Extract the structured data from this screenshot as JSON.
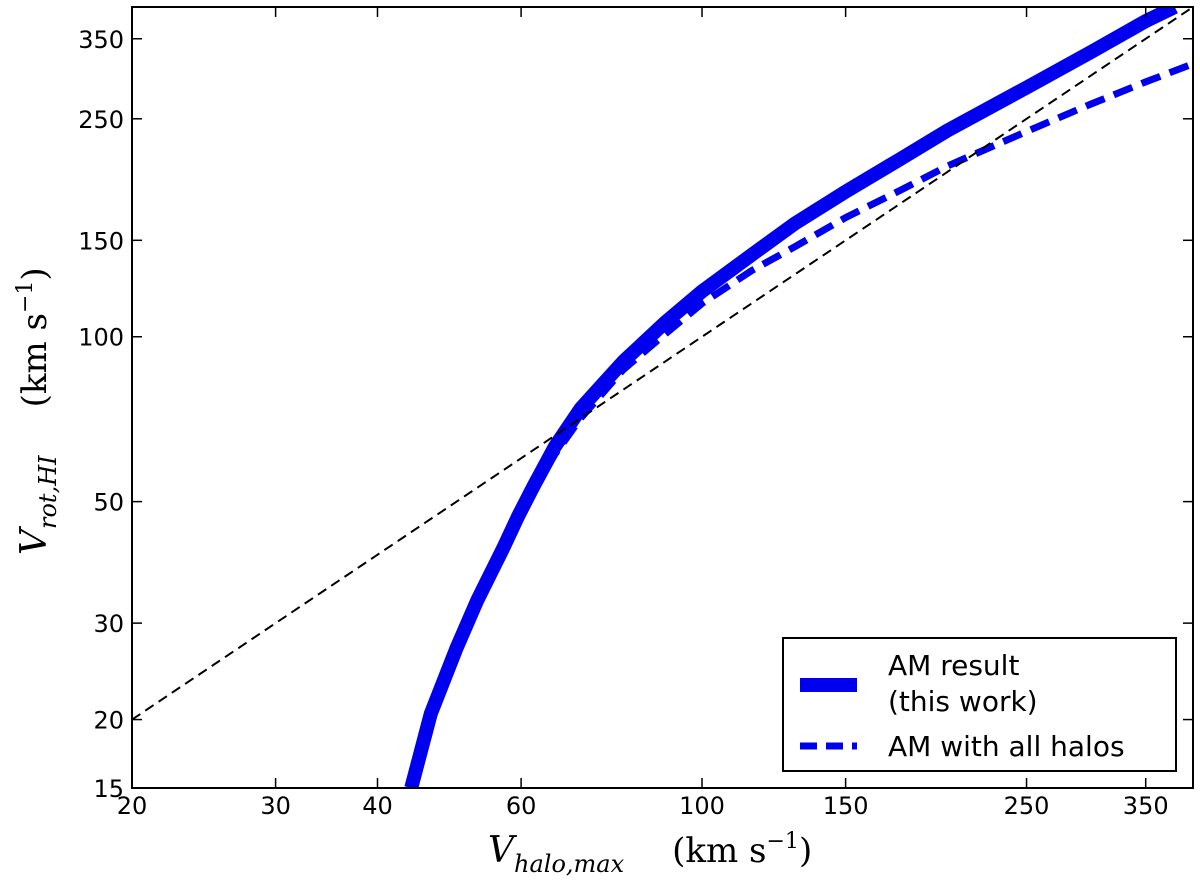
{
  "chart_data": {
    "type": "line",
    "x_scale": "log",
    "y_scale": "log",
    "xlim": [
      20,
      400
    ],
    "ylim": [
      15,
      400
    ],
    "x_ticks": [
      20,
      30,
      40,
      60,
      100,
      150,
      250,
      350
    ],
    "y_ticks": [
      15,
      20,
      30,
      50,
      100,
      150,
      250,
      350
    ],
    "x_tick_labels": [
      "20",
      "30",
      "40",
      "60",
      "100",
      "150",
      "250",
      "350"
    ],
    "y_tick_labels": [
      "15",
      "20",
      "30",
      "50",
      "100",
      "150",
      "250",
      "350"
    ],
    "xlabel": {
      "symbol": "V",
      "subscript": "halo,max",
      "unit_open": "(km s",
      "unit_sup": "−1",
      "unit_close": ")"
    },
    "ylabel": {
      "symbol": "V",
      "subscript": "rot,HI",
      "unit_open": "(km s",
      "unit_sup": "−1",
      "unit_close": ")"
    },
    "legend_position": "bottom-right",
    "series": [
      {
        "name": "AM result\n(this work)",
        "style": "solid-thick",
        "color": "#0000ee",
        "points": [
          [
            44,
            15
          ],
          [
            46.5,
            20.5
          ],
          [
            50,
            27
          ],
          [
            53,
            33
          ],
          [
            57,
            41
          ],
          [
            59.5,
            47
          ],
          [
            62,
            53
          ],
          [
            66,
            63
          ],
          [
            71,
            74
          ],
          [
            80,
            90
          ],
          [
            90,
            106
          ],
          [
            100,
            121
          ],
          [
            115,
            141
          ],
          [
            130,
            161
          ],
          [
            150,
            184
          ],
          [
            175,
            211
          ],
          [
            200,
            238
          ],
          [
            250,
            285
          ],
          [
            300,
            331
          ],
          [
            350,
            377
          ],
          [
            380,
            400
          ]
        ]
      },
      {
        "name": "AM with all halos",
        "style": "dashed-thick",
        "color": "#0000ee",
        "points": [
          [
            53,
            33
          ],
          [
            57,
            40
          ],
          [
            59.5,
            46
          ],
          [
            62,
            52
          ],
          [
            66,
            61
          ],
          [
            71,
            71
          ],
          [
            80,
            87
          ],
          [
            90,
            101
          ],
          [
            100,
            115
          ],
          [
            115,
            132
          ],
          [
            130,
            146
          ],
          [
            150,
            165
          ],
          [
            175,
            185
          ],
          [
            200,
            205
          ],
          [
            250,
            237
          ],
          [
            300,
            266
          ],
          [
            350,
            292
          ],
          [
            400,
            315
          ]
        ]
      },
      {
        "name": "",
        "style": "dashed-thin",
        "color": "#000000",
        "points": [
          [
            20,
            20
          ],
          [
            400,
            400
          ]
        ]
      }
    ]
  }
}
